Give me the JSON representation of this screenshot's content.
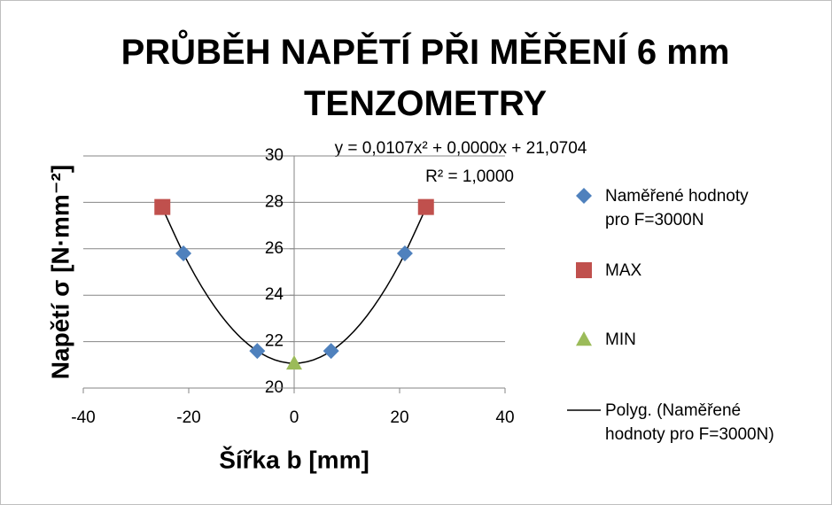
{
  "chart_data": {
    "type": "scatter",
    "title": "PRŮBĚH NAPĚTÍ PŘI MĚŘENÍ 6 mm TENZOMETRY",
    "x_label": "Šířka b [mm]",
    "y_label": "Napětí σ [N·mm⁻²]",
    "trendline_equation": "y = 0,0107x² + 0,0000x + 21,0704",
    "trendline_r2": "R² = 1,0000",
    "xlim": [
      -40,
      40
    ],
    "xticks": [
      -40,
      -20,
      0,
      20,
      40
    ],
    "ylim": [
      20,
      30
    ],
    "yticks": [
      20,
      22,
      24,
      26,
      28,
      30
    ],
    "grid": true,
    "legend": "right",
    "series": [
      {
        "name": "Naměřené hodnoty pro F=3000N",
        "color": "#4f81bd",
        "marker": "diamond",
        "x": [
          -21,
          -7,
          7,
          21
        ],
        "values": [
          25.8,
          21.6,
          21.6,
          25.8
        ]
      },
      {
        "name": "MAX",
        "color": "#c0504d",
        "marker": "square",
        "x": [
          -25,
          25
        ],
        "values": [
          27.8,
          27.8
        ]
      },
      {
        "name": "MIN",
        "color": "#9bbb59",
        "marker": "triangle",
        "x": [
          0
        ],
        "values": [
          21.07
        ]
      },
      {
        "name": "Polyg. (Naměřené hodnoty pro F=3000N)",
        "color": "#000000",
        "marker": "none",
        "x": [
          -25,
          -20,
          -15,
          -10,
          -5,
          0,
          5,
          10,
          15,
          20,
          25
        ],
        "values": [
          27.76,
          25.35,
          23.48,
          22.14,
          21.34,
          21.07,
          21.34,
          22.14,
          23.48,
          25.35,
          27.76
        ]
      }
    ]
  }
}
